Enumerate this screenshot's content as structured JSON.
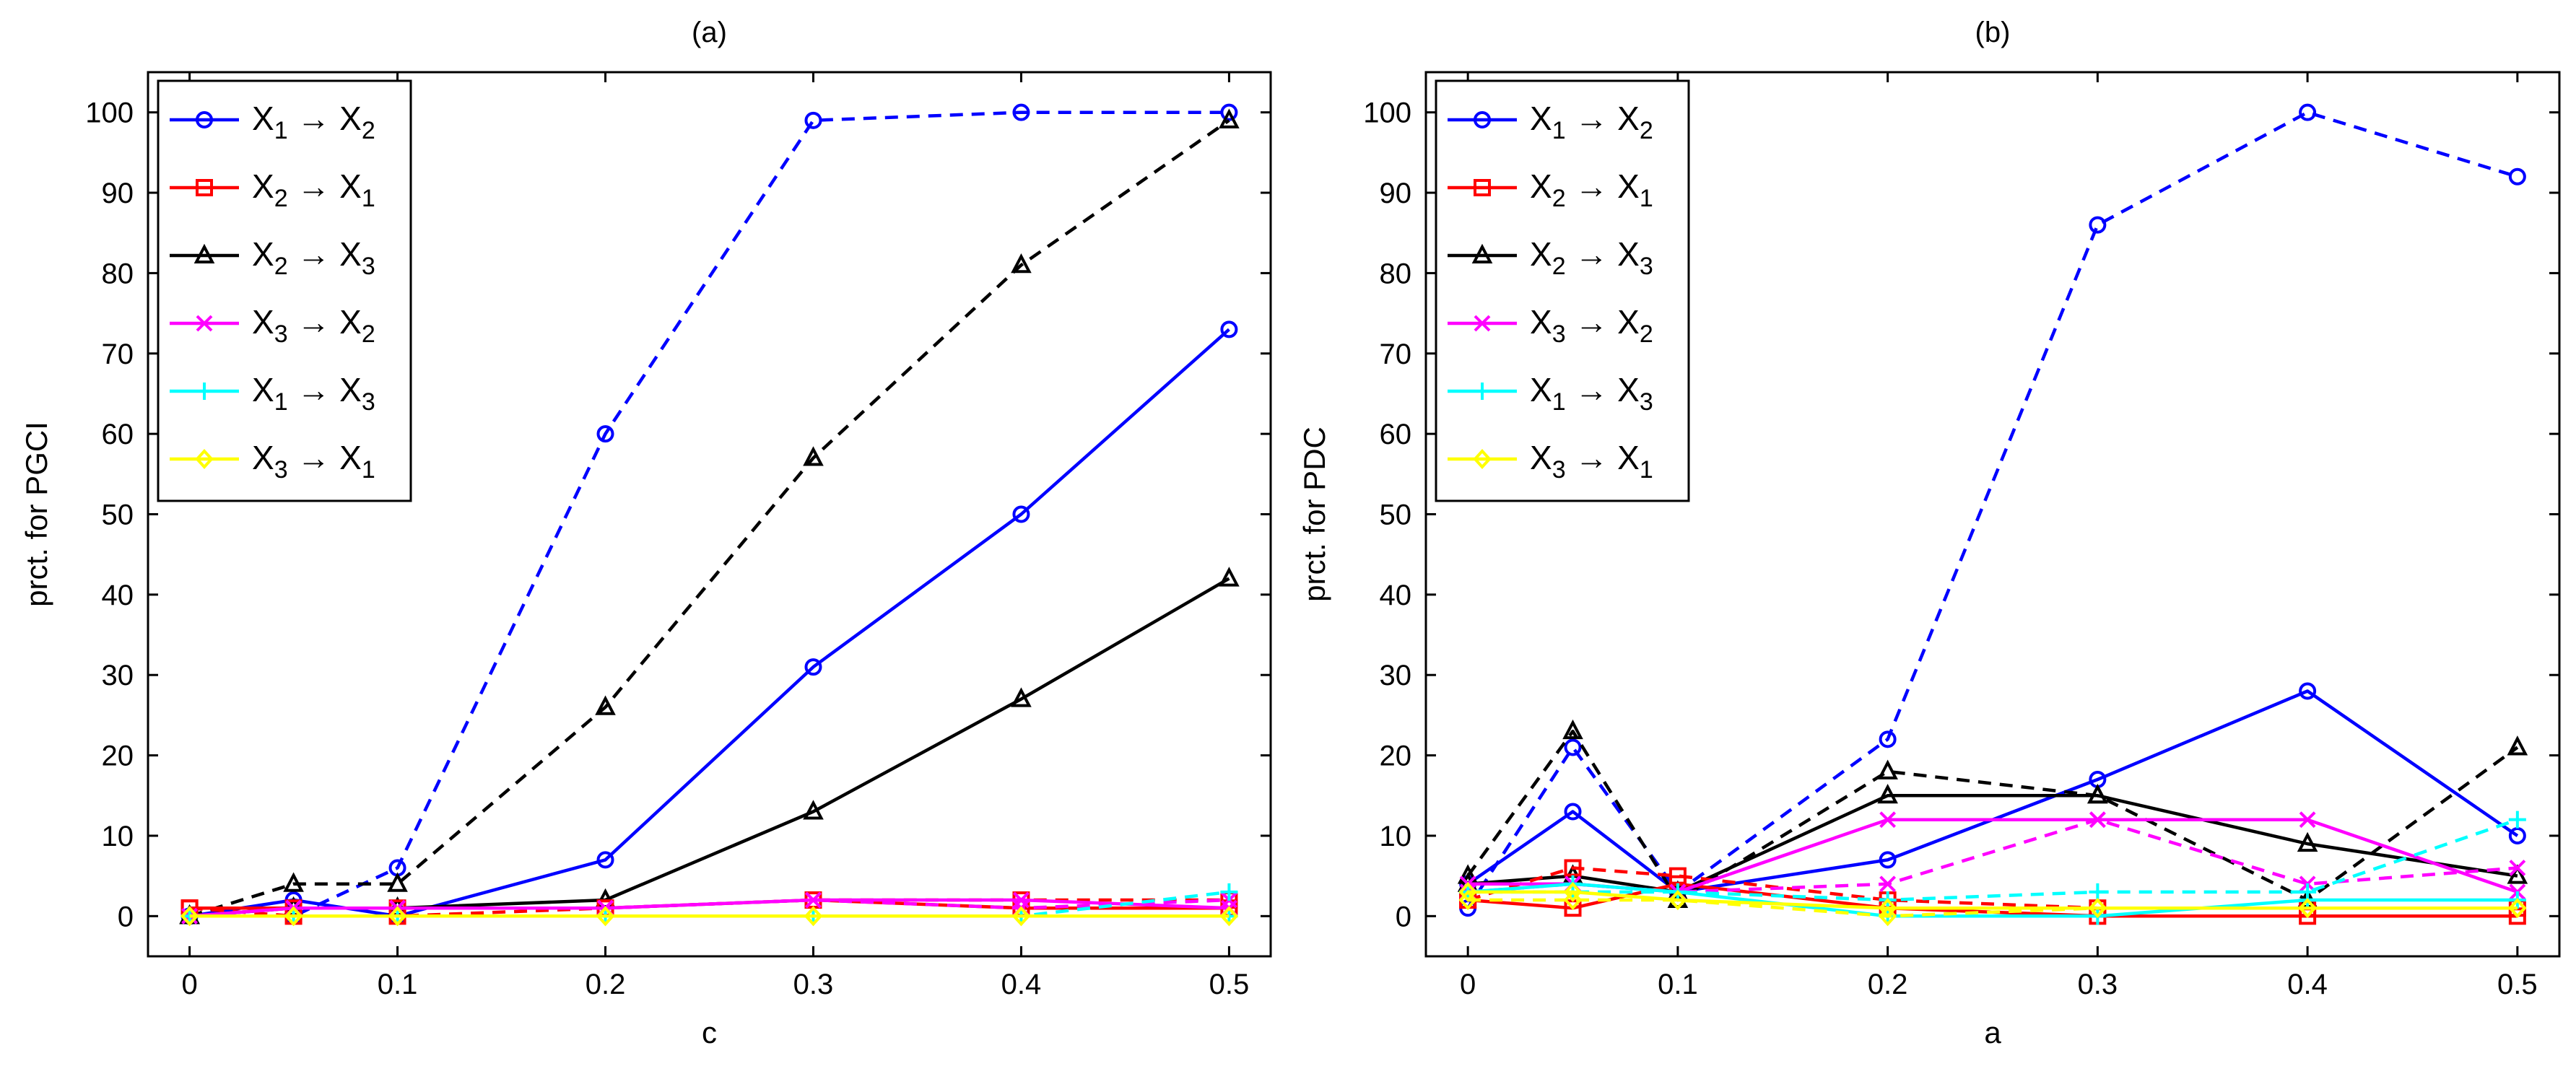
{
  "figure": {
    "panel_titles": [
      "(a)",
      "(b)"
    ]
  },
  "legend_entries": [
    {
      "from": "X",
      "from_sub": "1",
      "to": "X",
      "to_sub": "2",
      "color": "#0000ff",
      "marker": "circle"
    },
    {
      "from": "X",
      "from_sub": "2",
      "to": "X",
      "to_sub": "1",
      "color": "#ff0000",
      "marker": "square"
    },
    {
      "from": "X",
      "from_sub": "2",
      "to": "X",
      "to_sub": "3",
      "color": "#000000",
      "marker": "triangle"
    },
    {
      "from": "X",
      "from_sub": "3",
      "to": "X",
      "to_sub": "2",
      "color": "#ff00ff",
      "marker": "x"
    },
    {
      "from": "X",
      "from_sub": "1",
      "to": "X",
      "to_sub": "3",
      "color": "#00ffff",
      "marker": "plus"
    },
    {
      "from": "X",
      "from_sub": "3",
      "to": "X",
      "to_sub": "1",
      "color": "#ffff00",
      "marker": "diamond"
    }
  ],
  "arrow_glyph": "→",
  "chart_data": [
    {
      "type": "line",
      "title": "(a)",
      "xlabel": "c",
      "ylabel": "prct. for PGCI",
      "xlim": [
        -0.02,
        0.52
      ],
      "ylim": [
        -5,
        105
      ],
      "xticks": [
        0,
        0.1,
        0.2,
        0.3,
        0.4,
        0.5
      ],
      "xtick_labels": [
        "0",
        "0.1",
        "0.2",
        "0.3",
        "0.4",
        "0.5"
      ],
      "yticks": [
        0,
        10,
        20,
        30,
        40,
        50,
        60,
        70,
        80,
        90,
        100
      ],
      "ytick_labels": [
        "0",
        "10",
        "20",
        "30",
        "40",
        "50",
        "60",
        "70",
        "80",
        "90",
        "100"
      ],
      "legend_position": "top-left",
      "x": [
        0,
        0.05,
        0.1,
        0.2,
        0.3,
        0.4,
        0.5
      ],
      "series": [
        {
          "name": "X1→X2 (solid)",
          "color": "#0000ff",
          "marker": "circle",
          "dashed": false,
          "values": [
            0,
            2,
            0,
            7,
            31,
            50,
            73
          ]
        },
        {
          "name": "X1→X2 (dashed)",
          "color": "#0000ff",
          "marker": "circle",
          "dashed": true,
          "values": [
            0,
            0,
            6,
            60,
            99,
            100,
            100
          ]
        },
        {
          "name": "X2→X3 (solid)",
          "color": "#000000",
          "marker": "triangle",
          "dashed": false,
          "values": [
            0,
            1,
            1,
            2,
            13,
            27,
            42
          ]
        },
        {
          "name": "X2→X3 (dashed)",
          "color": "#000000",
          "marker": "triangle",
          "dashed": true,
          "values": [
            0,
            4,
            4,
            26,
            57,
            81,
            99
          ]
        },
        {
          "name": "X2→X1 (solid)",
          "color": "#ff0000",
          "marker": "square",
          "dashed": false,
          "values": [
            1,
            1,
            1,
            1,
            2,
            1,
            1
          ]
        },
        {
          "name": "X2→X1 (dashed)",
          "color": "#ff0000",
          "marker": "square",
          "dashed": true,
          "values": [
            1,
            0,
            0,
            1,
            2,
            2,
            2
          ]
        },
        {
          "name": "X3→X2 (solid)",
          "color": "#ff00ff",
          "marker": "x",
          "dashed": false,
          "values": [
            0,
            1,
            1,
            1,
            2,
            2,
            1
          ]
        },
        {
          "name": "X3→X2 (dashed)",
          "color": "#ff00ff",
          "marker": "x",
          "dashed": true,
          "values": [
            0,
            1,
            1,
            1,
            2,
            1,
            2
          ]
        },
        {
          "name": "X1→X3 (solid)",
          "color": "#00ffff",
          "marker": "plus",
          "dashed": false,
          "values": [
            0,
            0,
            0,
            0,
            0,
            0,
            0
          ]
        },
        {
          "name": "X1→X3 (dashed)",
          "color": "#00ffff",
          "marker": "plus",
          "dashed": true,
          "values": [
            0,
            0,
            0,
            0,
            0,
            0,
            3
          ]
        },
        {
          "name": "X3→X1 (solid)",
          "color": "#ffff00",
          "marker": "diamond",
          "dashed": false,
          "values": [
            0,
            0,
            0,
            0,
            0,
            0,
            0
          ]
        },
        {
          "name": "X3→X1 (dashed)",
          "color": "#ffff00",
          "marker": "diamond",
          "dashed": true,
          "values": [
            0,
            0,
            0,
            0,
            0,
            0,
            0
          ]
        }
      ]
    },
    {
      "type": "line",
      "title": "(b)",
      "xlabel": "a",
      "ylabel": "prct. for PDC",
      "xlim": [
        -0.02,
        0.52
      ],
      "ylim": [
        -5,
        105
      ],
      "xticks": [
        0,
        0.1,
        0.2,
        0.3,
        0.4,
        0.5
      ],
      "xtick_labels": [
        "0",
        "0.1",
        "0.2",
        "0.3",
        "0.4",
        "0.5"
      ],
      "yticks": [
        0,
        10,
        20,
        30,
        40,
        50,
        60,
        70,
        80,
        90,
        100
      ],
      "ytick_labels": [
        "0",
        "10",
        "20",
        "30",
        "40",
        "50",
        "60",
        "70",
        "80",
        "90",
        "100"
      ],
      "legend_position": "top-left",
      "x": [
        0,
        0.05,
        0.1,
        0.2,
        0.3,
        0.4,
        0.5
      ],
      "series": [
        {
          "name": "X1→X2 (solid)",
          "color": "#0000ff",
          "marker": "circle",
          "dashed": false,
          "values": [
            4,
            13,
            3,
            7,
            17,
            28,
            10
          ]
        },
        {
          "name": "X1→X2 (dashed)",
          "color": "#0000ff",
          "marker": "circle",
          "dashed": true,
          "values": [
            1,
            21,
            3,
            22,
            86,
            100,
            92
          ]
        },
        {
          "name": "X2→X3 (solid)",
          "color": "#000000",
          "marker": "triangle",
          "dashed": false,
          "values": [
            4,
            5,
            3,
            15,
            15,
            9,
            5
          ]
        },
        {
          "name": "X2→X3 (dashed)",
          "color": "#000000",
          "marker": "triangle",
          "dashed": true,
          "values": [
            5,
            23,
            2,
            18,
            15,
            2,
            21
          ]
        },
        {
          "name": "X2→X1 (solid)",
          "color": "#ff0000",
          "marker": "square",
          "dashed": false,
          "values": [
            2,
            1,
            4,
            1,
            0,
            0,
            0
          ]
        },
        {
          "name": "X2→X1 (dashed)",
          "color": "#ff0000",
          "marker": "square",
          "dashed": true,
          "values": [
            2,
            6,
            5,
            2,
            1,
            1,
            1
          ]
        },
        {
          "name": "X3→X2 (solid)",
          "color": "#ff00ff",
          "marker": "x",
          "dashed": false,
          "values": [
            4,
            4,
            3,
            12,
            12,
            12,
            3
          ]
        },
        {
          "name": "X3→X2 (dashed)",
          "color": "#ff00ff",
          "marker": "x",
          "dashed": true,
          "values": [
            3,
            4,
            3,
            4,
            12,
            4,
            6
          ]
        },
        {
          "name": "X1→X3 (solid)",
          "color": "#00ffff",
          "marker": "plus",
          "dashed": false,
          "values": [
            3,
            4,
            3,
            0,
            0,
            2,
            2
          ]
        },
        {
          "name": "X1→X3 (dashed)",
          "color": "#00ffff",
          "marker": "plus",
          "dashed": true,
          "values": [
            3,
            3,
            3,
            2,
            3,
            3,
            12
          ]
        },
        {
          "name": "X3→X1 (solid)",
          "color": "#ffff00",
          "marker": "diamond",
          "dashed": false,
          "values": [
            3,
            3,
            2,
            1,
            1,
            1,
            1
          ]
        },
        {
          "name": "X3→X1 (dashed)",
          "color": "#ffff00",
          "marker": "diamond",
          "dashed": true,
          "values": [
            2,
            2,
            2,
            0,
            1,
            1,
            1
          ]
        }
      ]
    }
  ]
}
